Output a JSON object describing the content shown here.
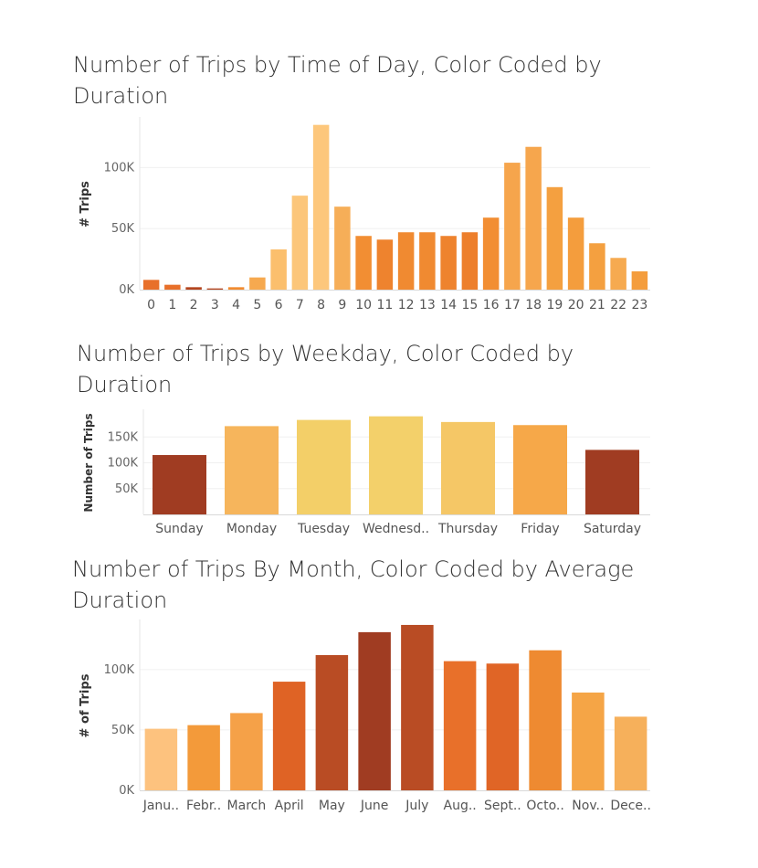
{
  "chart_data": [
    {
      "id": "hour",
      "type": "bar",
      "title": "Number of Trips by Time of Day, Color Coded by Duration",
      "ylabel": "# Trips",
      "xlabel": "",
      "categories": [
        "0",
        "1",
        "2",
        "3",
        "4",
        "5",
        "6",
        "7",
        "8",
        "9",
        "10",
        "11",
        "12",
        "13",
        "14",
        "15",
        "16",
        "17",
        "18",
        "19",
        "20",
        "21",
        "22",
        "23"
      ],
      "values": [
        8000,
        4000,
        2000,
        1000,
        2000,
        10000,
        33000,
        77000,
        135000,
        68000,
        44000,
        41000,
        47000,
        47000,
        44000,
        47000,
        59000,
        104000,
        117000,
        84000,
        59000,
        38000,
        26000,
        15000
      ],
      "colors": [
        "#e8702a",
        "#e8702a",
        "#b4451f",
        "#b4451f",
        "#f28c30",
        "#f6a94f",
        "#fbbf6d",
        "#fcc67a",
        "#fdc77c",
        "#f6ae58",
        "#f28e33",
        "#ee832e",
        "#f08a31",
        "#f08a31",
        "#ee832e",
        "#ed7f2c",
        "#f28e33",
        "#f6a54c",
        "#f6a64d",
        "#f4a040",
        "#f49d3d",
        "#f4a040",
        "#f6aa50",
        "#f49d3d"
      ],
      "yticks": [
        {
          "v": 0,
          "label": "0K"
        },
        {
          "v": 50000,
          "label": "50K"
        },
        {
          "v": 100000,
          "label": "100K"
        }
      ],
      "ylim": [
        0,
        140000
      ],
      "grid": true
    },
    {
      "id": "week",
      "type": "bar",
      "title": "Number of Trips by Weekday, Color Coded by Duration",
      "ylabel": "Number of Trips",
      "xlabel": "",
      "categories": [
        "Sunday",
        "Monday",
        "Tuesday",
        "Wednesd..",
        "Thursday",
        "Friday",
        "Saturday"
      ],
      "values": [
        115000,
        171000,
        183000,
        190000,
        179000,
        173000,
        125000
      ],
      "colors": [
        "#a03c22",
        "#f6b55c",
        "#f3cf68",
        "#f3d06a",
        "#f5c766",
        "#f6a849",
        "#a03c22"
      ],
      "yticks": [
        {
          "v": 50000,
          "label": "50K"
        },
        {
          "v": 100000,
          "label": "100K"
        },
        {
          "v": 150000,
          "label": "150K"
        }
      ],
      "ylim": [
        0,
        200000
      ],
      "grid": true
    },
    {
      "id": "month",
      "type": "bar",
      "title": "Number of Trips By Month, Color Coded by Average Duration",
      "ylabel": "# of Trips",
      "xlabel": "",
      "categories": [
        "Janu..",
        "Febr..",
        "March",
        "April",
        "May",
        "June",
        "July",
        "Aug..",
        "Sept..",
        "Octo..",
        "Nov..",
        "Dece.."
      ],
      "values": [
        51000,
        54000,
        64000,
        90000,
        112000,
        131000,
        137000,
        107000,
        105000,
        116000,
        81000,
        61000
      ],
      "colors": [
        "#fdc27e",
        "#f39a3a",
        "#f5a148",
        "#df6325",
        "#b94c24",
        "#a03c22",
        "#b94c24",
        "#e8702a",
        "#e06526",
        "#ee8a31",
        "#f5a546",
        "#f6b05b"
      ],
      "yticks": [
        {
          "v": 0,
          "label": "0K"
        },
        {
          "v": 50000,
          "label": "50K"
        },
        {
          "v": 100000,
          "label": "100K"
        }
      ],
      "ylim": [
        0,
        140000
      ],
      "grid": true
    }
  ]
}
